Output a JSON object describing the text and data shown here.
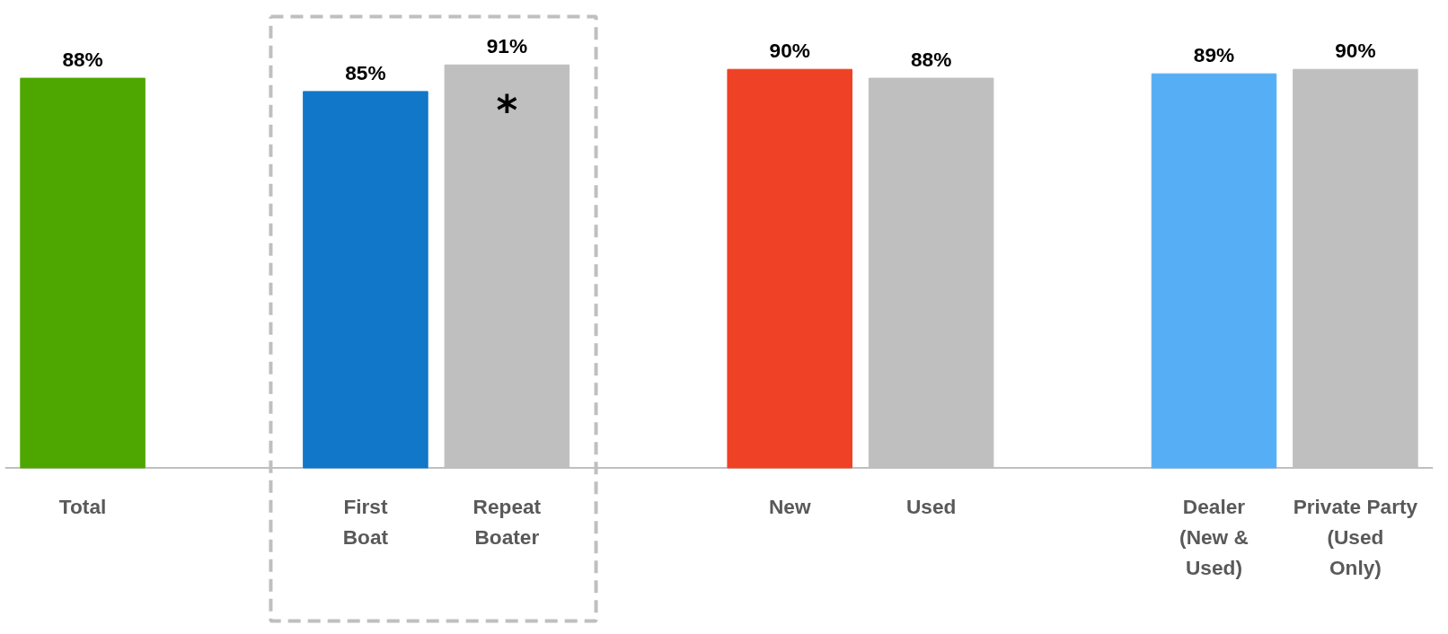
{
  "chart_data": {
    "type": "bar",
    "categories": [
      "Total",
      null,
      "First\nBoat",
      "Repeat\nBoater",
      null,
      "New",
      "Used",
      null,
      "Dealer\n(New &\nUsed)",
      "Private Party\n(Used\nOnly)"
    ],
    "values": [
      88,
      null,
      85,
      91,
      null,
      90,
      88,
      null,
      89,
      90
    ],
    "value_labels": [
      "88%",
      null,
      "85%",
      "91%",
      null,
      "90%",
      "88%",
      null,
      "89%",
      "90%"
    ],
    "colors": [
      "#4ea600",
      null,
      "#1177c8",
      "#bfbfbf",
      null,
      "#ee4125",
      "#bfbfbf",
      null,
      "#56aef5",
      "#bfbfbf"
    ],
    "tick_labels": "x",
    "annotations": [
      "*"
    ]
  }
}
